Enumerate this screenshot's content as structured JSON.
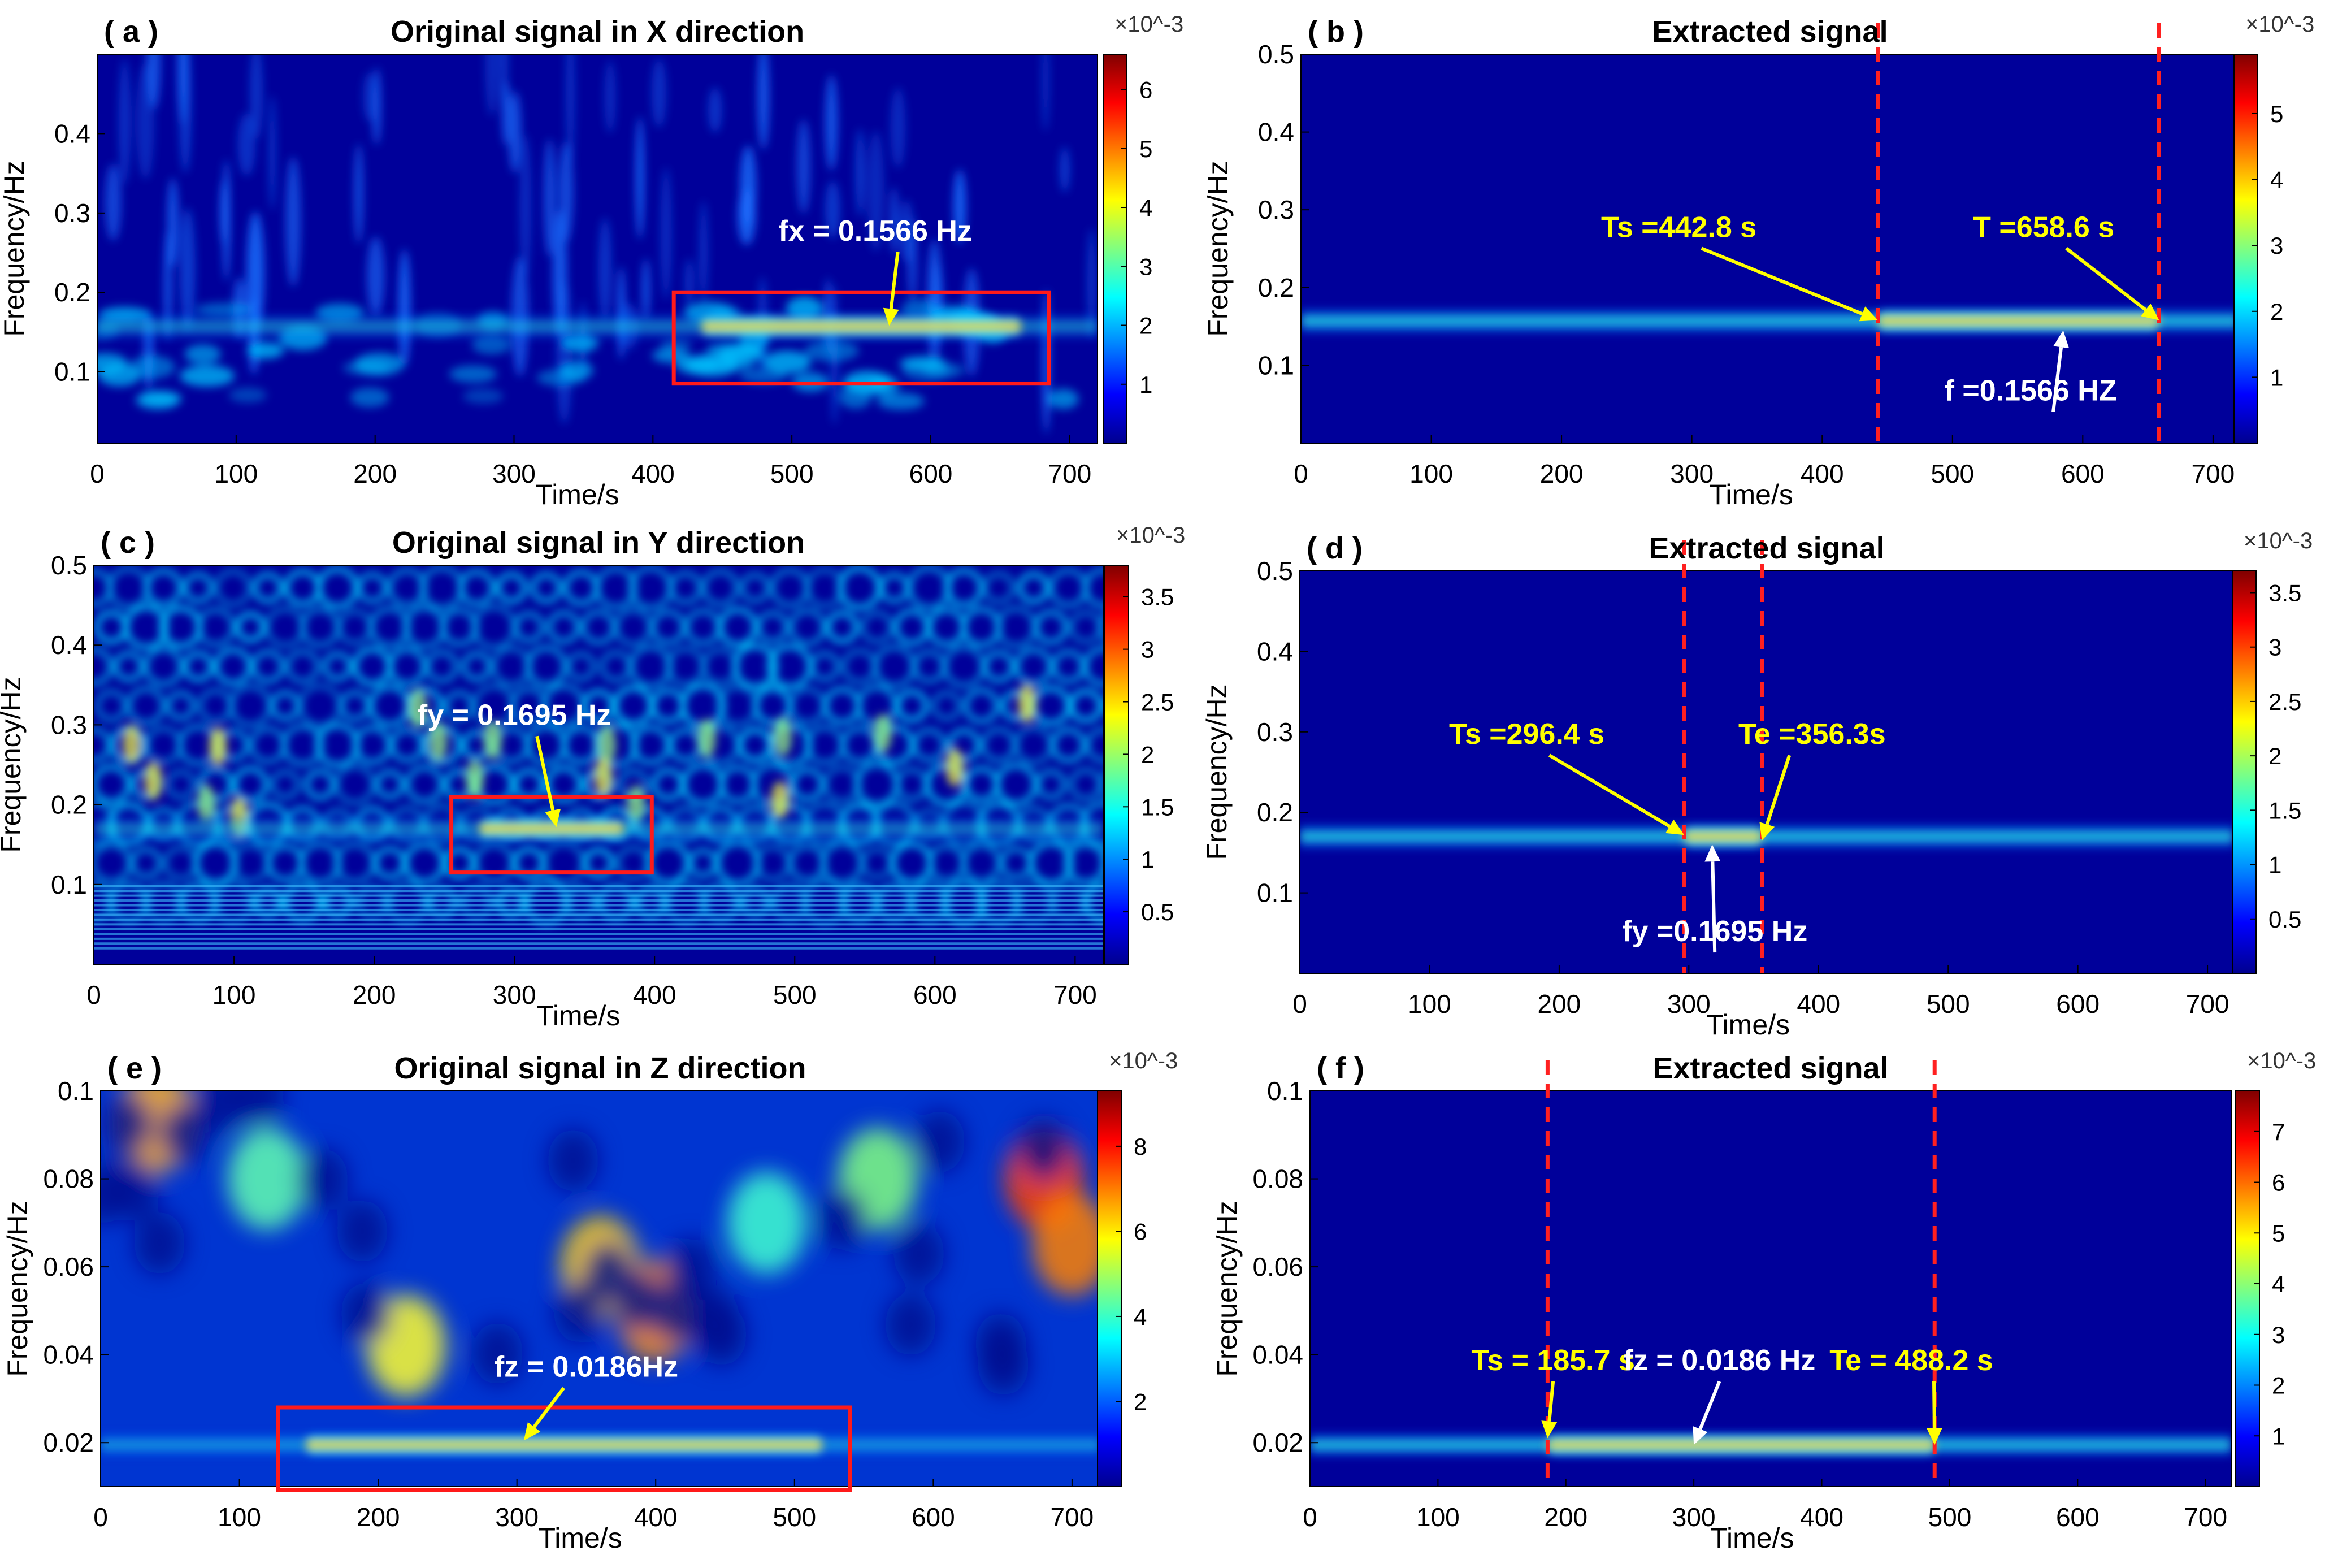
{
  "figure": {
    "type": "wavelet-scalogram-grid",
    "rows": 3,
    "cols": 2
  },
  "colormap": [
    "#00008f",
    "#0000ff",
    "#0080ff",
    "#00ffff",
    "#80ff80",
    "#ffff00",
    "#ff8000",
    "#ff0000",
    "#800000"
  ],
  "chart_data": [
    {
      "id": "a",
      "panel_label": "( a )",
      "title": "Original signal in X direction",
      "type": "heatmap",
      "xlabel": "Time/s",
      "ylabel": "Frequency/Hz",
      "xlim": [
        0,
        720
      ],
      "ylim": [
        0.01,
        0.5
      ],
      "xticks": [
        0,
        100,
        200,
        300,
        400,
        500,
        600,
        700
      ],
      "yticks": [
        0.1,
        0.2,
        0.3,
        0.4
      ],
      "ytick_labels": [
        "0.1",
        "0.2",
        "0.3",
        "0.4"
      ],
      "colorbar": {
        "exponent": "×10^-3",
        "min": 0,
        "max": 6.6,
        "ticks": [
          1,
          2,
          3,
          4,
          5,
          6
        ]
      },
      "band_freq": 0.157,
      "background": "noisy",
      "box": {
        "x0": 415,
        "x1": 685,
        "y0": 0.085,
        "y1": 0.2
      },
      "vlines": [],
      "annotations": [
        {
          "text": "fx = 0.1566 Hz",
          "color": "white",
          "tx": 560,
          "ty": 0.265,
          "ax": 570,
          "ay": 0.158,
          "arrow": "yellow"
        }
      ]
    },
    {
      "id": "b",
      "panel_label": "( b )",
      "title": "Extracted signal",
      "type": "heatmap",
      "xlabel": "Time/s",
      "ylabel": "Frequency/Hz",
      "xlim": [
        0,
        720
      ],
      "ylim": [
        0.0,
        0.5
      ],
      "xticks": [
        0,
        100,
        200,
        300,
        400,
        500,
        600,
        700
      ],
      "yticks": [
        0.1,
        0.2,
        0.3,
        0.4,
        0.5
      ],
      "ytick_labels": [
        "0.1",
        "0.2",
        "0.3",
        "0.4",
        "0.5"
      ],
      "colorbar": {
        "exponent": "×10^-3",
        "min": 0,
        "max": 5.9,
        "ticks": [
          1,
          2,
          3,
          4,
          5
        ]
      },
      "band_freq": 0.157,
      "background": "clean",
      "vlines": [
        442.8,
        658.6
      ],
      "annotations": [
        {
          "text": "Ts =442.8 s",
          "color": "yellow",
          "tx": 290,
          "ty": 0.265,
          "ax": 442.8,
          "ay": 0.158,
          "arrow": "yellow"
        },
        {
          "text": "T =658.6 s",
          "color": "yellow",
          "tx": 570,
          "ty": 0.265,
          "ax": 658.6,
          "ay": 0.158,
          "arrow": "yellow"
        },
        {
          "text": "f =0.1566 HZ",
          "color": "white",
          "tx": 560,
          "ty": 0.055,
          "ax": 585,
          "ay": 0.145,
          "arrow": "white"
        }
      ]
    },
    {
      "id": "c",
      "panel_label": "( c )",
      "title": "Original signal in Y direction",
      "type": "heatmap",
      "xlabel": "Time/s",
      "ylabel": "Frequency/Hz",
      "xlim": [
        0,
        720
      ],
      "ylim": [
        0.0,
        0.5
      ],
      "xticks": [
        0,
        100,
        200,
        300,
        400,
        500,
        600,
        700
      ],
      "yticks": [
        0.1,
        0.2,
        0.3,
        0.4,
        0.5
      ],
      "ytick_labels": [
        "0.1",
        "0.2",
        "0.3",
        "0.4",
        "0.5"
      ],
      "colorbar": {
        "exponent": "×10^-3",
        "min": 0,
        "max": 3.8,
        "ticks": [
          0.5,
          1,
          1.5,
          2,
          2.5,
          3,
          3.5
        ],
        "tick_labels": [
          "0.5",
          "1",
          "1.5",
          "2",
          "2.5",
          "3",
          "3.5"
        ]
      },
      "band_freq": 0.17,
      "background": "bubbly",
      "box": {
        "x0": 255,
        "x1": 398,
        "y0": 0.115,
        "y1": 0.21
      },
      "vlines": [],
      "annotations": [
        {
          "text": "fy = 0.1695 Hz",
          "color": "white",
          "tx": 300,
          "ty": 0.3,
          "ax": 330,
          "ay": 0.172,
          "arrow": "yellow"
        }
      ]
    },
    {
      "id": "d",
      "panel_label": "( d )",
      "title": "Extracted signal",
      "type": "heatmap",
      "xlabel": "Time/s",
      "ylabel": "Frequency/Hz",
      "xlim": [
        0,
        720
      ],
      "ylim": [
        0.0,
        0.5
      ],
      "xticks": [
        0,
        100,
        200,
        300,
        400,
        500,
        600,
        700
      ],
      "yticks": [
        0.1,
        0.2,
        0.3,
        0.4,
        0.5
      ],
      "ytick_labels": [
        "0.1",
        "0.2",
        "0.3",
        "0.4",
        "0.5"
      ],
      "colorbar": {
        "exponent": "×10^-3",
        "min": 0,
        "max": 3.7,
        "ticks": [
          0.5,
          1,
          1.5,
          2,
          2.5,
          3,
          3.5
        ],
        "tick_labels": [
          "0.5",
          "1",
          "1.5",
          "2",
          "2.5",
          "3",
          "3.5"
        ]
      },
      "band_freq": 0.17,
      "background": "clean",
      "vlines": [
        296.4,
        356.3
      ],
      "annotations": [
        {
          "text": "Ts =296.4 s",
          "color": "yellow",
          "tx": 175,
          "ty": 0.285,
          "ax": 296.4,
          "ay": 0.172,
          "arrow": "yellow"
        },
        {
          "text": "Te =356.3s",
          "color": "yellow",
          "tx": 395,
          "ty": 0.285,
          "ax": 356.3,
          "ay": 0.165,
          "arrow": "yellow"
        },
        {
          "text": "fy =0.1695 Hz",
          "color": "white",
          "tx": 320,
          "ty": 0.04,
          "ax": 318,
          "ay": 0.16,
          "arrow": "white"
        }
      ]
    },
    {
      "id": "e",
      "panel_label": "( e )",
      "title": "Original signal in Z direction",
      "type": "heatmap",
      "xlabel": "Time/s",
      "ylabel": "Frequency/Hz",
      "xlim": [
        0,
        720
      ],
      "ylim": [
        0.01,
        0.1
      ],
      "xticks": [
        0,
        100,
        200,
        300,
        400,
        500,
        600,
        700
      ],
      "yticks": [
        0.02,
        0.04,
        0.06,
        0.08,
        0.1
      ],
      "ytick_labels": [
        "0.02",
        "0.04",
        "0.06",
        "0.08",
        "0.1"
      ],
      "colorbar": {
        "exponent": "×10^-3",
        "min": 0,
        "max": 9.3,
        "ticks": [
          2,
          4,
          6,
          8
        ]
      },
      "band_freq": 0.0195,
      "background": "lowfreq",
      "box": {
        "x0": 128,
        "x1": 540,
        "y0": 0.0092,
        "y1": 0.028
      },
      "vlines": [],
      "annotations": [
        {
          "text": "fz = 0.0186Hz",
          "color": "white",
          "tx": 350,
          "ty": 0.035,
          "ax": 305,
          "ay": 0.0205,
          "arrow": "yellow"
        }
      ]
    },
    {
      "id": "f",
      "panel_label": "( f )",
      "title": "Extracted signal",
      "type": "heatmap",
      "xlabel": "Time/s",
      "ylabel": "Frequency/Hz",
      "xlim": [
        0,
        720
      ],
      "ylim": [
        0.01,
        0.1
      ],
      "xticks": [
        0,
        100,
        200,
        300,
        400,
        500,
        600,
        700
      ],
      "yticks": [
        0.02,
        0.04,
        0.06,
        0.08,
        0.1
      ],
      "ytick_labels": [
        "0.02",
        "0.04",
        "0.06",
        "0.08",
        "0.1"
      ],
      "colorbar": {
        "exponent": "×10^-3",
        "min": 0,
        "max": 7.8,
        "ticks": [
          1,
          2,
          3,
          4,
          5,
          6,
          7
        ]
      },
      "band_freq": 0.0195,
      "background": "clean",
      "vlines": [
        185.7,
        488.2
      ],
      "annotations": [
        {
          "text": "Ts = 185.7 s",
          "color": "yellow",
          "tx": 190,
          "ty": 0.0365,
          "ax": 185.7,
          "ay": 0.021,
          "arrow": "yellow"
        },
        {
          "text": "fz = 0.0186 Hz",
          "color": "white",
          "tx": 320,
          "ty": 0.0365,
          "ax": 300,
          "ay": 0.0195,
          "arrow": "white"
        },
        {
          "text": "Te = 488.2 s",
          "color": "yellow",
          "tx": 470,
          "ty": 0.0365,
          "ax": 488.2,
          "ay": 0.0195,
          "arrow": "yellow"
        }
      ]
    }
  ]
}
